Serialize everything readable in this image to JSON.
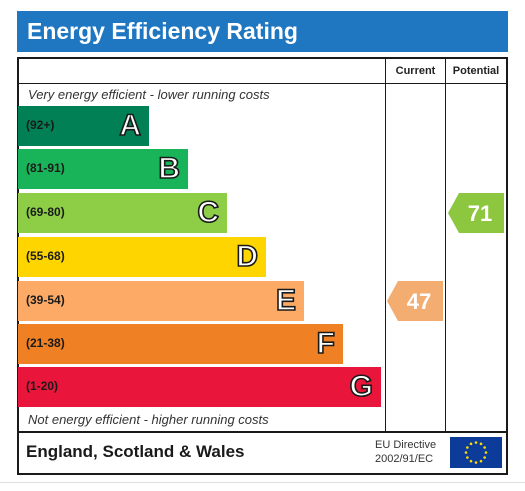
{
  "title": "Energy Efficiency Rating",
  "headers": {
    "current": "Current",
    "potential": "Potential"
  },
  "top_note": "Very energy efficient - lower running costs",
  "bottom_note": "Not energy efficient - higher running costs",
  "footer": {
    "country": "England, Scotland & Wales",
    "directive_line1": "EU Directive",
    "directive_line2": "2002/91/EC"
  },
  "chart_data": {
    "type": "bar",
    "title": "Energy Efficiency Rating",
    "categories": [
      "A",
      "B",
      "C",
      "D",
      "E",
      "F",
      "G"
    ],
    "ranges": [
      "(92+)",
      "(81-91)",
      "(69-80)",
      "(55-68)",
      "(39-54)",
      "(21-38)",
      "(1-20)"
    ],
    "colors": [
      "#008054",
      "#19b459",
      "#8dce46",
      "#ffd500",
      "#fcaa65",
      "#ef8023",
      "#e9153b"
    ],
    "current": {
      "value": 47,
      "band": "E",
      "color": "#f3ad70"
    },
    "potential": {
      "value": 71,
      "band": "C",
      "color": "#8dc63f"
    }
  }
}
